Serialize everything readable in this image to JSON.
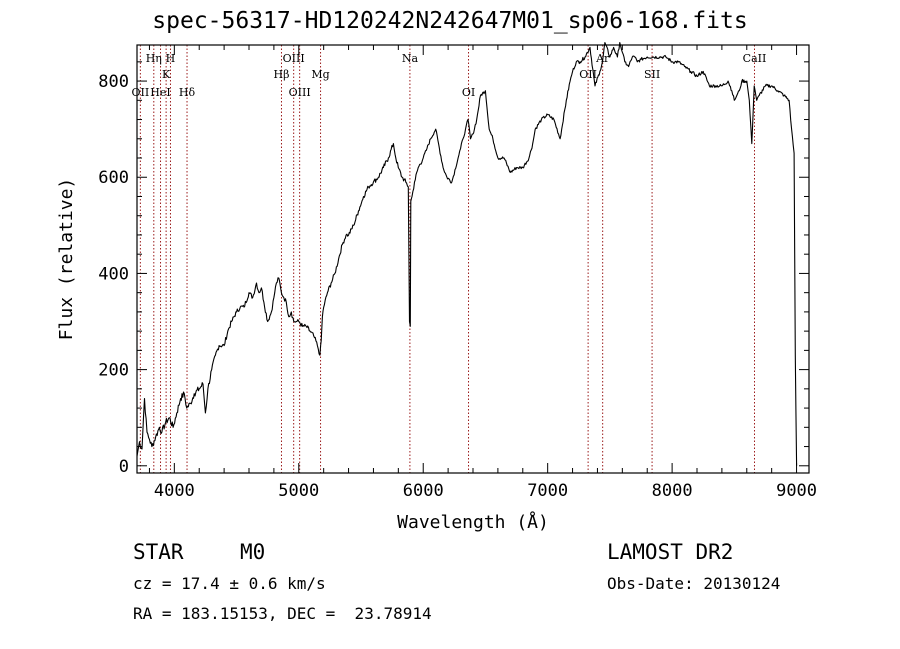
{
  "chart_data": {
    "type": "line",
    "title": "spec-56317-HD120242N242647M01_sp06-168.fits",
    "xlabel": "Wavelength (Å)",
    "ylabel": "Flux (relative)",
    "xlim": [
      3700,
      9100
    ],
    "ylim": [
      -15,
      875
    ],
    "xticks": [
      4000,
      5000,
      6000,
      7000,
      8000,
      9000
    ],
    "yticks": [
      0,
      200,
      400,
      600,
      800
    ],
    "grid": false,
    "series": [
      {
        "x": [
          3700,
          3720,
          3740,
          3760,
          3780,
          3800,
          3820,
          3850,
          3880,
          3900,
          3930,
          3960,
          3990,
          4020,
          4050,
          4080,
          4100,
          4130,
          4160,
          4200,
          4230,
          4250,
          4270,
          4300,
          4330,
          4360,
          4400,
          4430,
          4460,
          4500,
          4530,
          4560,
          4600,
          4630,
          4660,
          4680,
          4700,
          4720,
          4750,
          4780,
          4800,
          4820,
          4840,
          4860,
          4880,
          4900,
          4920,
          4940,
          4960,
          4980,
          5000,
          5030,
          5060,
          5090,
          5120,
          5150,
          5170,
          5180,
          5190,
          5200,
          5230,
          5260,
          5290,
          5320,
          5350,
          5380,
          5400,
          5440,
          5480,
          5520,
          5560,
          5600,
          5640,
          5680,
          5720,
          5760,
          5780,
          5800,
          5830,
          5860,
          5880,
          5890,
          5896,
          5900,
          5910,
          5930,
          5960,
          6000,
          6030,
          6060,
          6100,
          6130,
          6160,
          6190,
          6230,
          6280,
          6300,
          6320,
          6340,
          6360,
          6380,
          6400,
          6430,
          6460,
          6500,
          6530,
          6560,
          6600,
          6650,
          6700,
          6750,
          6800,
          6850,
          6880,
          6900,
          6950,
          7000,
          7050,
          7100,
          7150,
          7180,
          7200,
          7230,
          7260,
          7300,
          7340,
          7380,
          7420,
          7440,
          7460,
          7500,
          7530,
          7560,
          7580,
          7600,
          7620,
          7650,
          7680,
          7700,
          7720,
          7750,
          7800,
          7850,
          7900,
          7950,
          8000,
          8050,
          8100,
          8150,
          8200,
          8250,
          8300,
          8350,
          8400,
          8450,
          8480,
          8500,
          8520,
          8540,
          8560,
          8600,
          8620,
          8640,
          8660,
          8680,
          8700,
          8750,
          8800,
          8850,
          8900,
          8940,
          8960,
          8980,
          8990,
          9000
        ],
        "y": [
          20,
          50,
          35,
          140,
          70,
          55,
          40,
          60,
          80,
          70,
          90,
          100,
          80,
          110,
          140,
          150,
          120,
          130,
          150,
          160,
          170,
          110,
          160,
          200,
          230,
          250,
          250,
          280,
          300,
          320,
          330,
          330,
          360,
          350,
          380,
          360,
          370,
          340,
          300,
          320,
          350,
          380,
          390,
          360,
          350,
          340,
          310,
          320,
          300,
          300,
          300,
          290,
          290,
          280,
          270,
          250,
          230,
          260,
          310,
          330,
          360,
          380,
          400,
          430,
          460,
          480,
          480,
          500,
          530,
          560,
          580,
          590,
          600,
          620,
          640,
          670,
          640,
          620,
          600,
          590,
          580,
          300,
          290,
          550,
          560,
          590,
          620,
          640,
          660,
          680,
          700,
          660,
          620,
          600,
          590,
          640,
          660,
          680,
          700,
          720,
          680,
          690,
          720,
          770,
          780,
          700,
          680,
          640,
          640,
          610,
          620,
          620,
          640,
          670,
          700,
          720,
          730,
          720,
          680,
          760,
          800,
          820,
          840,
          840,
          850,
          870,
          790,
          820,
          840,
          880,
          850,
          870,
          850,
          880,
          860,
          840,
          830,
          850,
          850,
          840,
          845,
          850,
          850,
          850,
          850,
          840,
          840,
          830,
          820,
          810,
          820,
          790,
          790,
          790,
          800,
          780,
          760,
          770,
          780,
          800,
          800,
          760,
          670,
          790,
          760,
          770,
          790,
          790,
          780,
          770,
          760,
          700,
          650,
          230,
          0
        ]
      }
    ],
    "line_labels": [
      {
        "x": 3727,
        "label": "OII",
        "row": 3
      },
      {
        "x": 3835,
        "label": "Hη",
        "row": 1
      },
      {
        "x": 3889,
        "label": "HeI",
        "row": 3
      },
      {
        "x": 3934,
        "label": "K",
        "row": 2
      },
      {
        "x": 3969,
        "label": "H",
        "row": 1
      },
      {
        "x": 4102,
        "label": "Hδ",
        "row": 3
      },
      {
        "x": 4861,
        "label": "Hβ",
        "row": 2
      },
      {
        "x": 4959,
        "label": "OIII",
        "row": 1
      },
      {
        "x": 5007,
        "label": "OIII",
        "row": 3
      },
      {
        "x": 5175,
        "label": "Mg",
        "row": 2
      },
      {
        "x": 5893,
        "label": "Na",
        "row": 1
      },
      {
        "x": 6364,
        "label": "OI",
        "row": 3
      },
      {
        "x": 7325,
        "label": "OII",
        "row": 2
      },
      {
        "x": 7442,
        "label": "Ar",
        "row": 1
      },
      {
        "x": 7839,
        "label": "SII",
        "row": 2
      },
      {
        "x": 8662,
        "label": "CaII",
        "row": 1
      }
    ]
  },
  "info": {
    "class_label": "STAR",
    "subclass": "M0",
    "survey": "LAMOST DR2",
    "cz": "cz = 17.4 ± 0.6 km/s",
    "obs_date": "Obs-Date: 20130124",
    "coords": "RA = 183.15153, DEC =  23.78914"
  }
}
